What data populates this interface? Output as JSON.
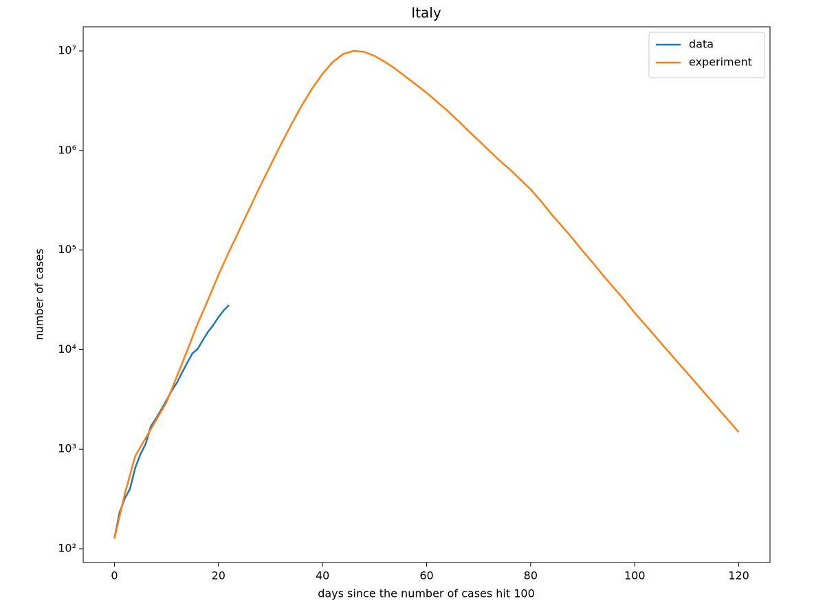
{
  "chart_data": {
    "type": "line",
    "title": "Italy",
    "xlabel": "days since the number of cases hit 100",
    "ylabel": "number of cases",
    "xlim": [
      -6,
      126
    ],
    "xticks": [
      0,
      20,
      40,
      60,
      80,
      100,
      120
    ],
    "ylim": [
      72.8,
      17460000
    ],
    "yscale": "log",
    "yticks": [
      {
        "value": 100,
        "label": "10²"
      },
      {
        "value": 1000,
        "label": "10³"
      },
      {
        "value": 10000,
        "label": "10⁴"
      },
      {
        "value": 100000,
        "label": "10⁵"
      },
      {
        "value": 1000000,
        "label": "10⁶"
      },
      {
        "value": 10000000,
        "label": "10⁷"
      }
    ],
    "legend": "upper right",
    "grid": false,
    "series": [
      {
        "name": "data",
        "color": "#1f77b4",
        "x": [
          0,
          1,
          2,
          3,
          4,
          5,
          6,
          7,
          8,
          9,
          10,
          11,
          12,
          13,
          14,
          15,
          16,
          17,
          18,
          19,
          20,
          21,
          22
        ],
        "values": [
          127,
          232,
          320,
          400,
          650,
          888,
          1128,
          1694,
          2036,
          2502,
          3089,
          3858,
          4636,
          5883,
          7375,
          9172,
          10149,
          12462,
          15113,
          17660,
          21157,
          24747,
          27980
        ]
      },
      {
        "name": "experiment",
        "color": "#ff7f0e",
        "x": [
          0,
          2,
          4,
          6,
          8,
          10,
          12,
          14,
          16,
          18,
          20,
          22,
          24,
          26,
          28,
          30,
          32,
          34,
          36,
          38,
          40,
          42,
          44,
          46,
          48,
          50,
          52,
          54,
          56,
          58,
          60,
          62,
          64,
          66,
          68,
          70,
          72,
          74,
          76,
          78,
          80,
          82,
          84,
          86,
          88,
          90,
          92,
          94,
          96,
          98,
          100,
          102,
          104,
          106,
          108,
          110,
          112,
          114,
          116,
          118,
          120
        ],
        "values": [
          126,
          355,
          851,
          1290,
          1950,
          2950,
          5370,
          9770,
          18200,
          31600,
          56200,
          95500,
          158000,
          263000,
          437000,
          708000,
          1150000,
          1820000,
          2820000,
          4170000,
          5890000,
          7760000,
          9330000,
          10000000,
          9770000,
          8910000,
          7760000,
          6610000,
          5500000,
          4570000,
          3800000,
          3090000,
          2510000,
          2000000,
          1580000,
          1260000,
          1000000,
          794000,
          646000,
          513000,
          407000,
          309000,
          229000,
          174000,
          132000,
          97700,
          74100,
          55000,
          41700,
          31600,
          23400,
          17800,
          13500,
          10200,
          7760,
          5890,
          4470,
          3390,
          2570,
          1950,
          1480
        ]
      }
    ]
  }
}
